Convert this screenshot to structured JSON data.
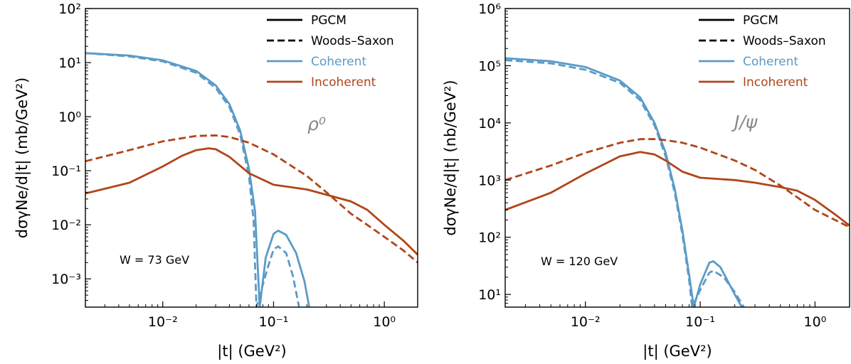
{
  "chart_data": [
    {
      "type": "line",
      "x_scale": "log",
      "y_scale": "log",
      "xlim": [
        0.002,
        2.0
      ],
      "ylim": [
        0.0003,
        100
      ],
      "xlabel": "|t| (GeV²)",
      "ylabel": "dσγNe/d|t| (mb/GeV²)",
      "x_ticks": [
        "10⁻²",
        "10⁻¹",
        "10⁰"
      ],
      "y_ticks": [
        "10⁻³",
        "10⁻²",
        "10⁻¹",
        "10⁰",
        "10¹",
        "10²"
      ],
      "annotation_particle": "ρ⁰",
      "annotation_energy": "W = 73 GeV",
      "legend": [
        "PGCM",
        "Woods–Saxon",
        "Coherent",
        "Incoherent"
      ],
      "legend_placement": "top-right",
      "colors": {
        "coherent": "#5b9bc7",
        "incoherent": "#b0451a"
      },
      "series": [
        {
          "name": "Coherent",
          "model": "PGCM",
          "x": [
            0.002,
            0.005,
            0.01,
            0.02,
            0.03,
            0.04,
            0.05,
            0.06,
            0.068,
            0.075,
            0.085,
            0.1,
            0.11,
            0.13,
            0.16,
            0.19,
            0.21
          ],
          "y": [
            15,
            13.5,
            11,
            7,
            3.8,
            1.7,
            0.55,
            0.11,
            0.018,
            0.0003,
            0.0025,
            0.0068,
            0.0078,
            0.0065,
            0.003,
            0.0009,
            0.0003
          ]
        },
        {
          "name": "Coherent",
          "model": "Woods–Saxon",
          "x": [
            0.002,
            0.005,
            0.01,
            0.02,
            0.03,
            0.04,
            0.05,
            0.06,
            0.066,
            0.07,
            0.09,
            0.1,
            0.11,
            0.13,
            0.15,
            0.17
          ],
          "y": [
            15,
            13,
            10.5,
            6.5,
            3.4,
            1.5,
            0.46,
            0.08,
            0.012,
            0.0003,
            0.0018,
            0.0035,
            0.004,
            0.003,
            0.0011,
            0.0003
          ]
        },
        {
          "name": "Incoherent",
          "model": "PGCM",
          "x": [
            0.002,
            0.005,
            0.01,
            0.015,
            0.02,
            0.026,
            0.03,
            0.04,
            0.06,
            0.1,
            0.2,
            0.3,
            0.5,
            0.7,
            1.0,
            1.5,
            2.0
          ],
          "y": [
            0.038,
            0.06,
            0.12,
            0.19,
            0.24,
            0.26,
            0.25,
            0.18,
            0.09,
            0.055,
            0.045,
            0.036,
            0.027,
            0.019,
            0.01,
            0.005,
            0.0028
          ]
        },
        {
          "name": "Incoherent",
          "model": "Woods–Saxon",
          "x": [
            0.002,
            0.005,
            0.01,
            0.02,
            0.03,
            0.04,
            0.06,
            0.1,
            0.2,
            0.3,
            0.5,
            0.7,
            1.0,
            1.5,
            2.0
          ],
          "y": [
            0.15,
            0.24,
            0.35,
            0.44,
            0.45,
            0.42,
            0.33,
            0.2,
            0.08,
            0.04,
            0.016,
            0.01,
            0.006,
            0.0033,
            0.002
          ]
        }
      ]
    },
    {
      "type": "line",
      "x_scale": "log",
      "y_scale": "log",
      "xlim": [
        0.002,
        2.0
      ],
      "ylim": [
        6,
        1000000
      ],
      "xlabel": "|t| (GeV²)",
      "ylabel": "dσγNe/d|t| (nb/GeV²)",
      "x_ticks": [
        "10⁻²",
        "10⁻¹",
        "10⁰"
      ],
      "y_ticks": [
        "10¹",
        "10²",
        "10³",
        "10⁴",
        "10⁵",
        "10⁶"
      ],
      "annotation_particle": "J/ψ",
      "annotation_energy": "W = 120 GeV",
      "legend": [
        "PGCM",
        "Woods–Saxon",
        "Coherent",
        "Incoherent"
      ],
      "legend_placement": "top-right",
      "colors": {
        "coherent": "#5b9bc7",
        "incoherent": "#b0451a"
      },
      "series": [
        {
          "name": "Coherent",
          "model": "PGCM",
          "x": [
            0.002,
            0.005,
            0.01,
            0.02,
            0.03,
            0.04,
            0.05,
            0.06,
            0.07,
            0.08,
            0.088,
            0.1,
            0.12,
            0.13,
            0.15,
            0.2,
            0.23
          ],
          "y": [
            135000,
            120000,
            95000,
            55000,
            28000,
            10000,
            3000,
            700,
            130,
            22,
            6,
            15,
            36,
            38,
            30,
            10,
            6
          ]
        },
        {
          "name": "Coherent",
          "model": "Woods–Saxon",
          "x": [
            0.002,
            0.005,
            0.01,
            0.02,
            0.03,
            0.04,
            0.05,
            0.06,
            0.07,
            0.08,
            0.085,
            0.1,
            0.12,
            0.13,
            0.16,
            0.2,
            0.24
          ],
          "y": [
            125000,
            110000,
            85000,
            50000,
            25000,
            9000,
            2600,
            600,
            110,
            18,
            6,
            12,
            24,
            26,
            20,
            11,
            6
          ]
        },
        {
          "name": "Incoherent",
          "model": "PGCM",
          "x": [
            0.002,
            0.005,
            0.01,
            0.02,
            0.03,
            0.04,
            0.05,
            0.07,
            0.1,
            0.2,
            0.3,
            0.5,
            0.7,
            1.0,
            1.5,
            2.0
          ],
          "y": [
            300,
            600,
            1300,
            2600,
            3100,
            2800,
            2200,
            1400,
            1100,
            1000,
            900,
            750,
            650,
            450,
            250,
            160
          ]
        },
        {
          "name": "Incoherent",
          "model": "Woods–Saxon",
          "x": [
            0.002,
            0.005,
            0.01,
            0.02,
            0.03,
            0.04,
            0.05,
            0.07,
            0.1,
            0.2,
            0.3,
            0.5,
            0.7,
            1.0,
            1.5,
            2.0
          ],
          "y": [
            1000,
            1800,
            3000,
            4500,
            5200,
            5200,
            5000,
            4500,
            3700,
            2200,
            1500,
            800,
            500,
            300,
            200,
            150
          ]
        }
      ]
    }
  ]
}
